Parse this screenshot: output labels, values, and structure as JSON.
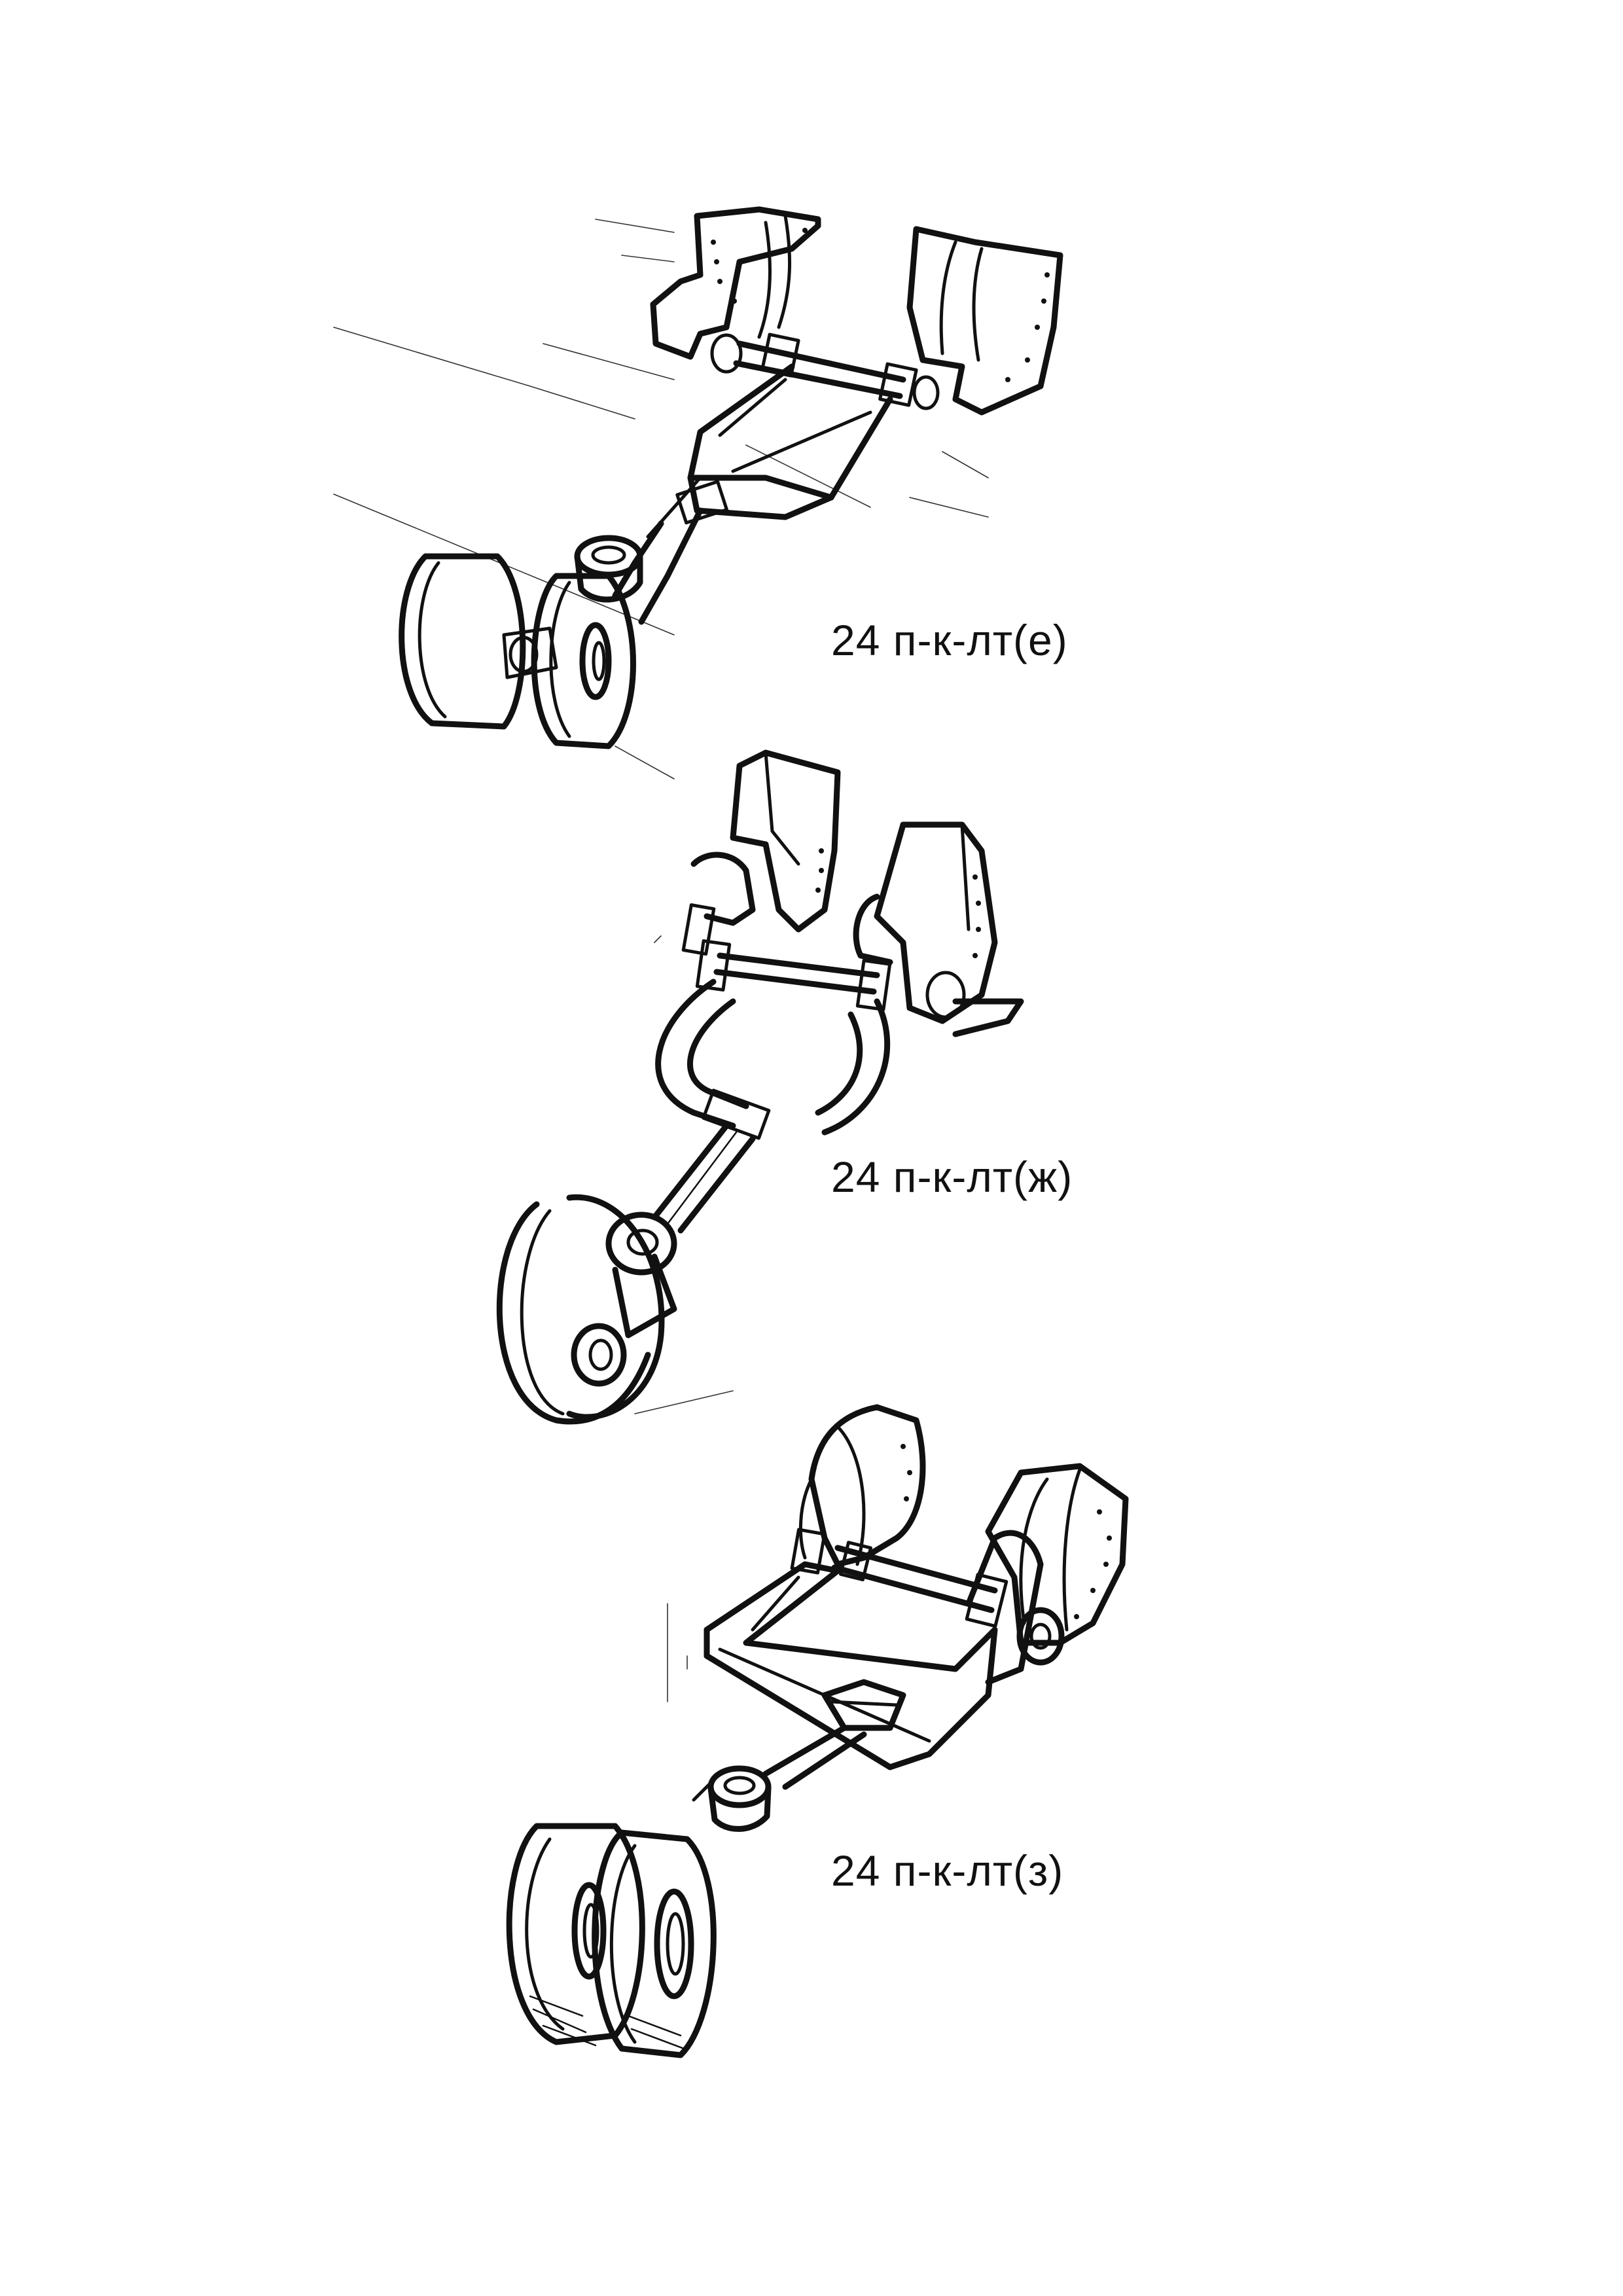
{
  "figures": [
    {
      "caption": "24 п-к-лт(е)"
    },
    {
      "caption": "24 п-к-лт(ж)"
    },
    {
      "caption": "24 п-к-лт(з)"
    }
  ],
  "colors": {
    "ink": "#111111",
    "paper": "#ffffff"
  }
}
